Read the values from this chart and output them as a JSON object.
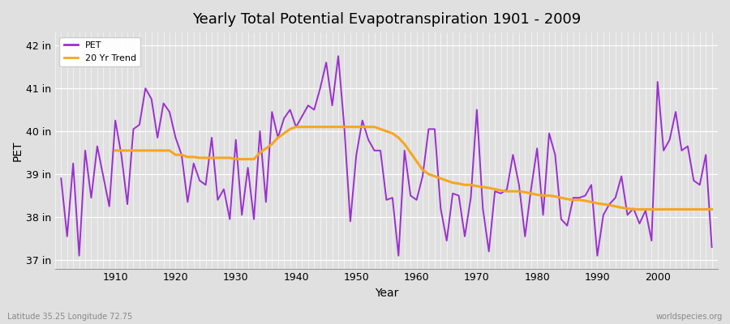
{
  "title": "Yearly Total Potential Evapotranspiration 1901 - 2009",
  "xlabel": "Year",
  "ylabel": "PET",
  "subtitle_left": "Latitude 35.25 Longitude 72.75",
  "subtitle_right": "worldspecies.org",
  "ylim": [
    36.8,
    42.3
  ],
  "yticks": [
    37,
    38,
    39,
    40,
    41,
    42
  ],
  "ytick_labels": [
    "37 in",
    "38 in",
    "39 in",
    "40 in",
    "41 in",
    "42 in"
  ],
  "xlim": [
    1900,
    2010
  ],
  "xticks": [
    1910,
    1920,
    1930,
    1940,
    1950,
    1960,
    1970,
    1980,
    1990,
    2000
  ],
  "bg_color": "#e0e0e0",
  "grid_color": "#ffffff",
  "pet_color": "#9b30d0",
  "trend_color": "#f5a623",
  "pet_linewidth": 1.4,
  "trend_linewidth": 2.2,
  "years": [
    1901,
    1902,
    1903,
    1904,
    1905,
    1906,
    1907,
    1908,
    1909,
    1910,
    1911,
    1912,
    1913,
    1914,
    1915,
    1916,
    1917,
    1918,
    1919,
    1920,
    1921,
    1922,
    1923,
    1924,
    1925,
    1926,
    1927,
    1928,
    1929,
    1930,
    1931,
    1932,
    1933,
    1934,
    1935,
    1936,
    1937,
    1938,
    1939,
    1940,
    1941,
    1942,
    1943,
    1944,
    1945,
    1946,
    1947,
    1948,
    1949,
    1950,
    1951,
    1952,
    1953,
    1954,
    1955,
    1956,
    1957,
    1958,
    1959,
    1960,
    1961,
    1962,
    1963,
    1964,
    1965,
    1966,
    1967,
    1968,
    1969,
    1970,
    1971,
    1972,
    1973,
    1974,
    1975,
    1976,
    1977,
    1978,
    1979,
    1980,
    1981,
    1982,
    1983,
    1984,
    1985,
    1986,
    1987,
    1988,
    1989,
    1990,
    1991,
    1992,
    1993,
    1994,
    1995,
    1996,
    1997,
    1998,
    1999,
    2000,
    2001,
    2002,
    2003,
    2004,
    2005,
    2006,
    2007,
    2008,
    2009
  ],
  "pet_values": [
    38.9,
    37.55,
    39.25,
    37.1,
    39.55,
    38.45,
    39.65,
    38.95,
    38.25,
    40.25,
    39.45,
    38.3,
    40.05,
    40.15,
    41.0,
    40.75,
    39.85,
    40.65,
    40.45,
    39.85,
    39.45,
    38.35,
    39.25,
    38.85,
    38.75,
    39.85,
    38.4,
    38.65,
    37.95,
    39.8,
    38.05,
    39.15,
    37.95,
    40.0,
    38.35,
    40.45,
    39.85,
    40.3,
    40.5,
    40.1,
    40.35,
    40.6,
    40.5,
    41.0,
    41.6,
    40.6,
    41.75,
    40.1,
    37.9,
    39.45,
    40.25,
    39.8,
    39.55,
    39.55,
    38.4,
    38.45,
    37.1,
    39.55,
    38.5,
    38.4,
    38.95,
    40.05,
    40.05,
    38.2,
    37.45,
    38.55,
    38.5,
    37.55,
    38.45,
    40.5,
    38.2,
    37.2,
    38.6,
    38.55,
    38.65,
    39.45,
    38.75,
    37.55,
    38.65,
    39.6,
    38.05,
    39.95,
    39.45,
    37.95,
    37.8,
    38.45,
    38.45,
    38.5,
    38.75,
    37.1,
    38.05,
    38.3,
    38.45,
    38.95,
    38.05,
    38.2,
    37.85,
    38.15,
    37.45,
    41.15,
    39.55,
    39.8,
    40.45,
    39.55,
    39.65,
    38.85,
    38.75,
    39.45,
    37.3
  ],
  "trend_years": [
    1910,
    1911,
    1912,
    1913,
    1914,
    1915,
    1916,
    1917,
    1918,
    1919,
    1920,
    1921,
    1922,
    1923,
    1924,
    1925,
    1926,
    1927,
    1928,
    1929,
    1930,
    1931,
    1932,
    1933,
    1934,
    1935,
    1936,
    1937,
    1938,
    1939,
    1940,
    1941,
    1942,
    1943,
    1944,
    1945,
    1946,
    1947,
    1948,
    1949,
    1950,
    1951,
    1952,
    1953,
    1954,
    1955,
    1956,
    1957,
    1958,
    1959,
    1960,
    1961,
    1962,
    1963,
    1964,
    1965,
    1966,
    1967,
    1968,
    1969,
    1970,
    1971,
    1972,
    1973,
    1974,
    1975,
    1976,
    1977,
    1978,
    1979,
    1980,
    1981,
    1982,
    1983,
    1984,
    1985,
    1986,
    1987,
    1988,
    1989,
    1990,
    1991,
    1992,
    1993,
    1994,
    1995,
    1996,
    1997,
    1998,
    1999,
    2000,
    2001,
    2002,
    2003,
    2004,
    2005,
    2006,
    2007,
    2008,
    2009
  ],
  "trend_values": [
    39.55,
    39.55,
    39.55,
    39.55,
    39.55,
    39.55,
    39.55,
    39.55,
    39.55,
    39.55,
    39.45,
    39.45,
    39.4,
    39.4,
    39.38,
    39.38,
    39.38,
    39.38,
    39.38,
    39.38,
    39.35,
    39.35,
    39.35,
    39.35,
    39.5,
    39.6,
    39.7,
    39.85,
    39.95,
    40.05,
    40.1,
    40.1,
    40.1,
    40.1,
    40.1,
    40.1,
    40.1,
    40.1,
    40.1,
    40.1,
    40.1,
    40.1,
    40.1,
    40.1,
    40.05,
    40.0,
    39.95,
    39.85,
    39.7,
    39.5,
    39.3,
    39.1,
    39.0,
    38.95,
    38.9,
    38.85,
    38.8,
    38.78,
    38.75,
    38.75,
    38.72,
    38.7,
    38.68,
    38.65,
    38.62,
    38.6,
    38.6,
    38.6,
    38.58,
    38.55,
    38.52,
    38.5,
    38.5,
    38.48,
    38.45,
    38.42,
    38.4,
    38.4,
    38.38,
    38.35,
    38.32,
    38.3,
    38.28,
    38.25,
    38.22,
    38.2,
    38.18,
    38.18,
    38.18,
    38.18,
    38.18,
    38.18,
    38.18,
    38.18,
    38.18,
    38.18,
    38.18,
    38.18,
    38.18,
    38.18
  ]
}
